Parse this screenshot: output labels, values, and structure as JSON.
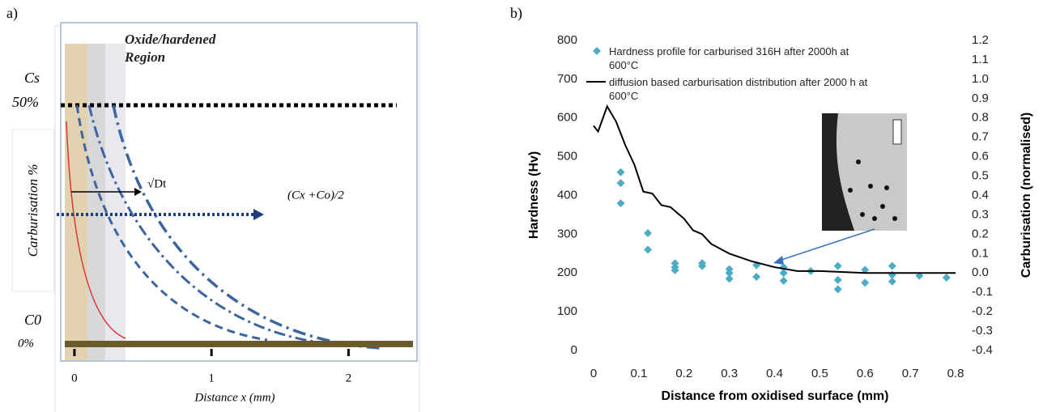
{
  "chart_data": [
    {
      "type": "schematic",
      "panel_label": "a)",
      "region_label": "Oxide/hardened Region",
      "cs_label": "Cs",
      "cs_value_label": "50%",
      "c0_label": "C0",
      "c0_value_label": "0%",
      "ylabel": "Carburisation %",
      "sqrt_label": "√Dt",
      "mid_label": "(Cx +Co)/2",
      "xlabel": "Distance x (mm)",
      "xlim": [
        -0.1,
        2.5
      ],
      "xticks": [
        0,
        1,
        2
      ]
    },
    {
      "type": "scatter",
      "panel_label": "b)",
      "xlabel": "Distance from oxidised surface (mm)",
      "ylabel": "Hardness (Hv)",
      "y2label": "Carburisation (normalised)",
      "xlim": [
        0,
        0.8
      ],
      "xticks": [
        0,
        0.1,
        0.2,
        0.3,
        0.4,
        0.5,
        0.6,
        0.7,
        0.8
      ],
      "ylim": [
        0,
        800
      ],
      "yticks": [
        0,
        100,
        200,
        300,
        400,
        500,
        600,
        700,
        800
      ],
      "y2lim": [
        -0.4,
        1.2
      ],
      "y2ticks": [
        -0.4,
        -0.3,
        -0.2,
        -0.1,
        {
          "value": 0,
          "label": "0.0"
        },
        0.1,
        0.2,
        0.3,
        0.4,
        0.5,
        0.6,
        0.7,
        0.8,
        0.9,
        {
          "value": 1,
          "label": "1.0"
        },
        1.1,
        1.2
      ],
      "series": [
        {
          "name": "Hardness profile for carburised 316H after 2000h at 600°C",
          "color": "#4bacc6",
          "type": "scatter",
          "x": [
            0.06,
            0.06,
            0.06,
            0.12,
            0.12,
            0.18,
            0.18,
            0.18,
            0.24,
            0.24,
            0.3,
            0.3,
            0.3,
            0.36,
            0.36,
            0.42,
            0.42,
            0.42,
            0.48,
            0.54,
            0.54,
            0.54,
            0.6,
            0.6,
            0.66,
            0.66,
            0.66,
            0.72,
            0.78
          ],
          "values": [
            460,
            432,
            380,
            303,
            260,
            225,
            215,
            207,
            225,
            218,
            210,
            200,
            185,
            220,
            190,
            215,
            200,
            180,
            205,
            218,
            182,
            158,
            208,
            175,
            218,
            195,
            178,
            193,
            188
          ]
        },
        {
          "name": "diffusion based carburisation distribution after 2000 h at 600°C",
          "color": "#000000",
          "type": "line",
          "axis": "y2",
          "x": [
            0,
            0.01,
            0.03,
            0.05,
            0.07,
            0.09,
            0.11,
            0.13,
            0.15,
            0.17,
            0.2,
            0.22,
            0.24,
            0.26,
            0.3,
            0.35,
            0.4,
            0.45,
            0.5,
            0.6,
            0.7,
            0.8
          ],
          "values": [
            0.76,
            0.73,
            0.86,
            0.78,
            0.66,
            0.56,
            0.42,
            0.41,
            0.35,
            0.34,
            0.28,
            0.22,
            0.2,
            0.15,
            0.1,
            0.06,
            0.03,
            0.01,
            0.01,
            0,
            0,
            0
          ]
        }
      ]
    }
  ]
}
